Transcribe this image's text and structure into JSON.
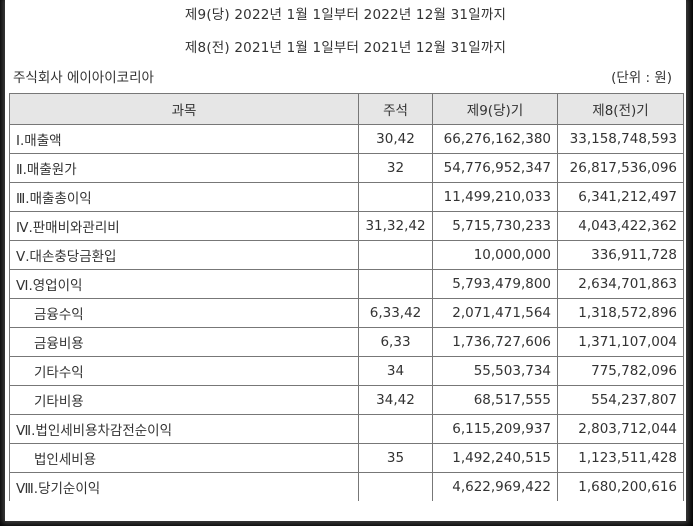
{
  "header": {
    "period_current": "제9(당) 2022년 1월 1일부터 2022년 12월 31일까지",
    "period_prior": "제8(전) 2021년 1월 1일부터 2021년 12월 31일까지",
    "company": "주식회사 에이아이코리아",
    "unit": "(단위 : 원)"
  },
  "table": {
    "columns": [
      "과목",
      "주석",
      "제9(당)기",
      "제8(전)기"
    ],
    "rows": [
      {
        "subject": "Ⅰ.매출액",
        "note": "30,42",
        "current": "66,276,162,380",
        "prior": "33,158,748,593",
        "indent": false
      },
      {
        "subject": "Ⅱ.매출원가",
        "note": "32",
        "current": "54,776,952,347",
        "prior": "26,817,536,096",
        "indent": false
      },
      {
        "subject": "Ⅲ.매출총이익",
        "note": "",
        "current": "11,499,210,033",
        "prior": "6,341,212,497",
        "indent": false
      },
      {
        "subject": "Ⅳ.판매비와관리비",
        "note": "31,32,42",
        "current": "5,715,730,233",
        "prior": "4,043,422,362",
        "indent": false
      },
      {
        "subject": "Ⅴ.대손충당금환입",
        "note": "",
        "current": "10,000,000",
        "prior": "336,911,728",
        "indent": false
      },
      {
        "subject": "Ⅵ.영업이익",
        "note": "",
        "current": "5,793,479,800",
        "prior": "2,634,701,863",
        "indent": false
      },
      {
        "subject": "금융수익",
        "note": "6,33,42",
        "current": "2,071,471,564",
        "prior": "1,318,572,896",
        "indent": true
      },
      {
        "subject": "금융비용",
        "note": "6,33",
        "current": "1,736,727,606",
        "prior": "1,371,107,004",
        "indent": true
      },
      {
        "subject": "기타수익",
        "note": "34",
        "current": "55,503,734",
        "prior": "775,782,096",
        "indent": true
      },
      {
        "subject": "기타비용",
        "note": "34,42",
        "current": "68,517,555",
        "prior": "554,237,807",
        "indent": true
      },
      {
        "subject": "Ⅶ.법인세비용차감전순이익",
        "note": "",
        "current": "6,115,209,937",
        "prior": "2,803,712,044",
        "indent": false
      },
      {
        "subject": "법인세비용",
        "note": "35",
        "current": "1,492,240,515",
        "prior": "1,123,511,428",
        "indent": true
      },
      {
        "subject": "Ⅷ.당기순이익",
        "note": "",
        "current": "4,622,969,422",
        "prior": "1,680,200,616",
        "indent": false
      }
    ]
  }
}
